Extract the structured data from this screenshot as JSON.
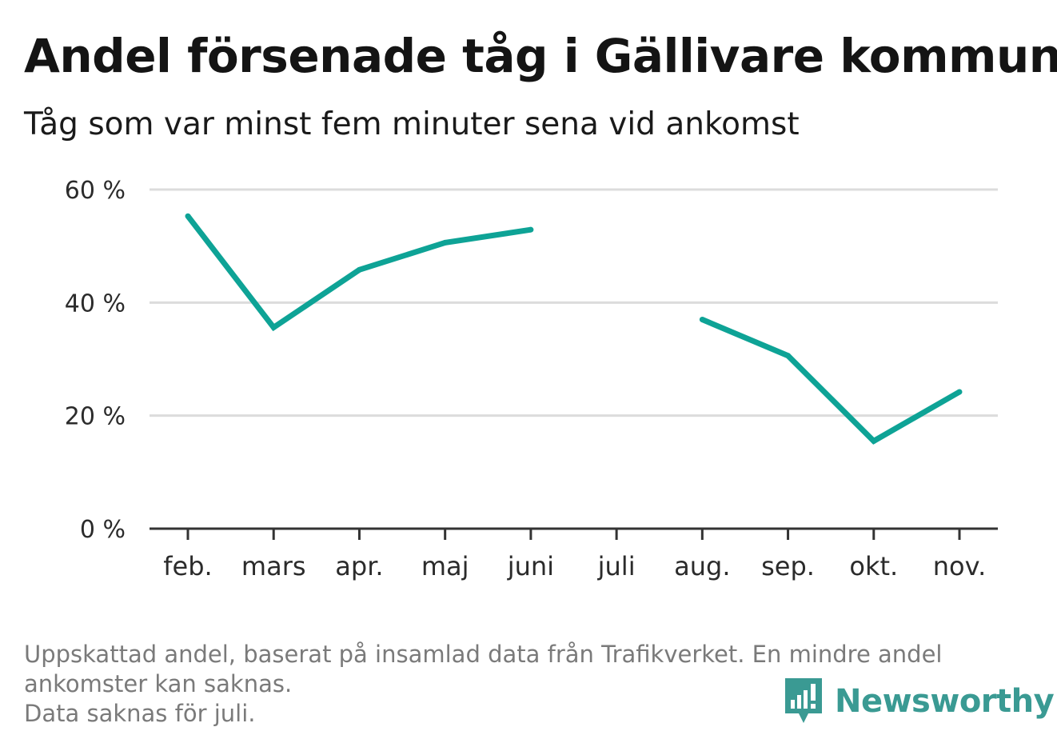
{
  "title": "Andel försenade tåg i Gällivare kommun",
  "subtitle": "Tåg som var minst fem minuter sena vid ankomst",
  "footnote": {
    "line1": "Uppskattad andel, baserat på insamlad data från Trafikverket. En mindre andel",
    "line2": "ankomster kan saknas.",
    "line3": "Data saknas för juli."
  },
  "brand": {
    "name": "Newsworthy",
    "icon": "newsworthy-logo-icon",
    "color": "#3a9a93"
  },
  "colors": {
    "line": "#0ea396",
    "grid": "#dcdcdc",
    "axis": "#333333"
  },
  "chart_data": {
    "type": "line",
    "title": "Andel försenade tåg i Gällivare kommun",
    "subtitle": "Tåg som var minst fem minuter sena vid ankomst",
    "categories": [
      "feb.",
      "mars",
      "apr.",
      "maj",
      "juni",
      "juli",
      "aug.",
      "sep.",
      "okt.",
      "nov."
    ],
    "series": [
      {
        "values": [
          55.3,
          35.6,
          45.8,
          50.6,
          52.9,
          null,
          37.0,
          30.6,
          15.5,
          24.2
        ]
      }
    ],
    "ylim": [
      0,
      60
    ],
    "yticks": [
      0,
      20,
      40,
      60
    ],
    "ytick_labels": [
      "0 %",
      "20 %",
      "40 %",
      "60 %"
    ],
    "grid": true,
    "legend": "none"
  }
}
